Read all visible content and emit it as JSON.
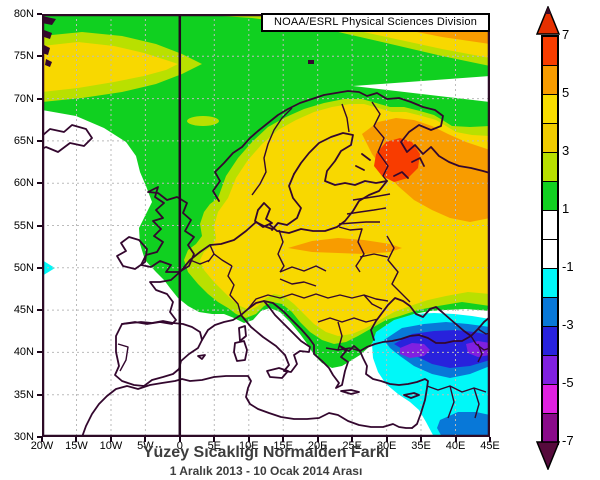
{
  "credit_box": {
    "text": "NOAA/ESRL Physical Sciences Division"
  },
  "title": {
    "main": "Yüzey Sıcaklığı Normalden Farkı",
    "sub": "1 Aralık 2013 - 10 Ocak 2014 Arası"
  },
  "axes": {
    "lat_ticks": [
      "80N",
      "75N",
      "70N",
      "65N",
      "60N",
      "55N",
      "50N",
      "45N",
      "40N",
      "35N",
      "30N"
    ],
    "lon_ticks": [
      "20W",
      "15W",
      "10W",
      "5W",
      "0",
      "5E",
      "10E",
      "15E",
      "20E",
      "25E",
      "30E",
      "35E",
      "40E",
      "45E"
    ]
  },
  "colorbar": {
    "labels": [
      "7",
      "5",
      "3",
      "1",
      "-1",
      "-3",
      "-5",
      "-7"
    ],
    "segment_colors": [
      "#f83c00",
      "#f89c00",
      "#f8dc00",
      "#f0cc00",
      "#b9e000",
      "#10d020",
      "#ffffff",
      "#ffffff",
      "#00f8f8",
      "#0878d8",
      "#2822dc",
      "#8020e0",
      "#e020e0",
      "#8a0a8a"
    ],
    "top_arrow_color": "#e63000",
    "bottom_arrow_color": "#560a3c"
  },
  "palette": {
    "green": "#10d020",
    "yellow_green": "#b9e000",
    "yellow": "#f8d800",
    "orange": "#f89c00",
    "red": "#f83c00",
    "white": "#ffffff",
    "cyan": "#00f8f8",
    "blue": "#0878d8",
    "indigo": "#2822dc",
    "violet": "#8020e0",
    "coastline": "#33072e",
    "grid": "#bbbbbb"
  },
  "map_data": {
    "type": "filled-contour-anomaly-map",
    "region": "Europe / North Atlantic",
    "lon_range": [
      "20W",
      "45E"
    ],
    "lat_range": [
      "30N",
      "80N"
    ],
    "contour_levels_labeled": [
      -7,
      -5,
      -3,
      -1,
      1,
      3,
      5,
      7
    ],
    "prime_meridian_line": "vertical dark line at 0 longitude",
    "features": [
      {
        "area": "NW Russia near 28E-35E, 59N-64N",
        "anomaly": "+5 to +7 (red core with orange ring)"
      },
      {
        "area": "Scandinavia, Baltic, Eastern and Central Europe",
        "anomaly": "+3 to +5 (yellow)"
      },
      {
        "area": "Arctic band 76N-80N east of about 12E",
        "anomaly": "+3 to +7 (yellow-orange-red bands)"
      },
      {
        "area": "NE Atlantic lens near 72N-77N west of 0",
        "anomaly": "+3 to +5 (yellow lens)"
      },
      {
        "area": "British Isles, North Sea, France, Balkans rim",
        "anomaly": "+1 to +3 (green)"
      },
      {
        "area": "Iberia, western Mediterranean, mid-Atlantic, Black Sea",
        "anomaly": "-1 to +1 (white)"
      },
      {
        "area": "Barents Sea wedge 70N-73N east of 33E",
        "anomaly": "-1 to +1 (white)"
      },
      {
        "area": "Turkey / Anatolia / Caucasus",
        "anomaly": "-2 to -5 (cyan, blue, indigo, violet cores)"
      },
      {
        "area": "Levant and Mesopotamia bottom right",
        "anomaly": "-2 to -3 (cyan with blue patch)"
      },
      {
        "area": "small spot at 20W, 50N",
        "anomaly": "-1 to -2 (cyan)"
      }
    ]
  }
}
